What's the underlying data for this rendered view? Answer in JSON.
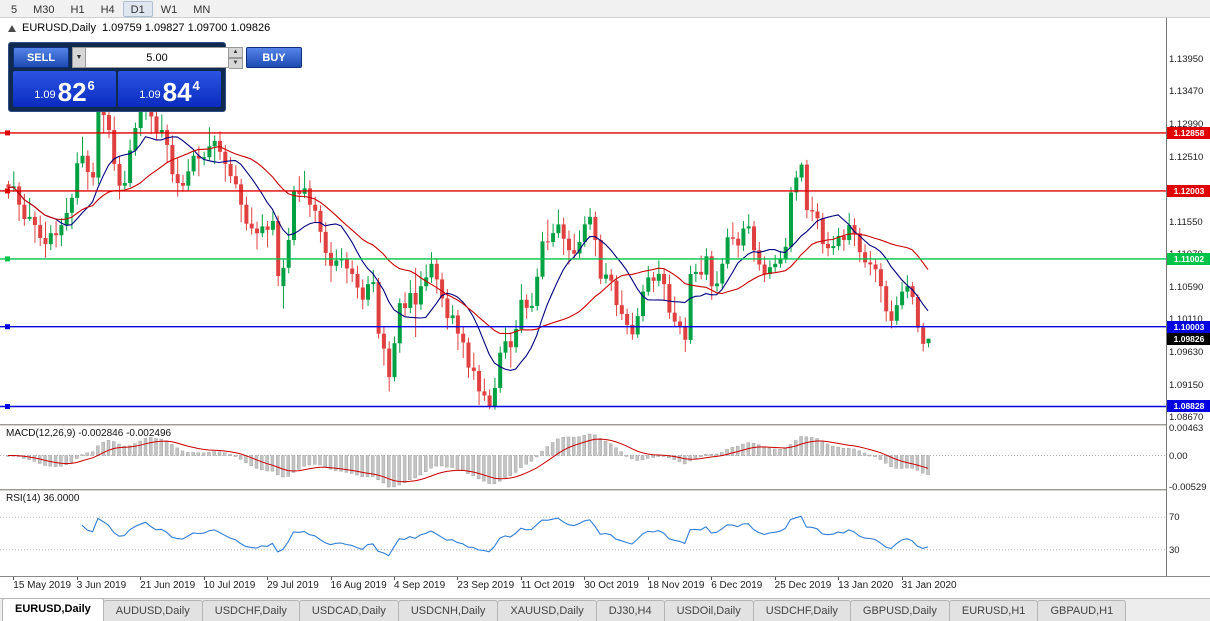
{
  "toolbar": {
    "timeframes": [
      "5",
      "M30",
      "H1",
      "H4",
      "D1",
      "W1",
      "MN"
    ],
    "active_timeframe": "D1"
  },
  "chart": {
    "symbol": "EURUSD,Daily",
    "ohlc_text": "1.09759 1.09827 1.09700 1.09826"
  },
  "trade": {
    "sell_label": "SELL",
    "buy_label": "BUY",
    "volume": "5.00",
    "sell_price": {
      "prefix": "1.09",
      "main": "82",
      "sup": "6"
    },
    "buy_price": {
      "prefix": "1.09",
      "main": "84",
      "sup": "4"
    }
  },
  "price_axis": [
    "1.13950",
    "1.13470",
    "1.12990",
    "1.12510",
    "1.12030",
    "1.11550",
    "1.11070",
    "1.10590",
    "1.10110",
    "1.09630",
    "1.09150",
    "1.08670"
  ],
  "levels": [
    {
      "label": "1.12858",
      "price": 1.12858,
      "color": "#e00000"
    },
    {
      "label": "1.12003",
      "price": 1.12003,
      "color": "#e00000"
    },
    {
      "label": "1.11002",
      "price": 1.11002,
      "color": "#00c44a"
    },
    {
      "label": "1.10003",
      "price": 1.10003,
      "color": "#0000e0"
    },
    {
      "label": "1.08828",
      "price": 1.08828,
      "color": "#0000e0"
    }
  ],
  "current_price": {
    "label": "1.09826",
    "price": 1.09826,
    "color": "#000000"
  },
  "macd": {
    "label": "MACD(12,26,9) -0.002846 -0.002496",
    "axis_top": "0.00463",
    "axis_zero": "0.00",
    "axis_bottom": "-0.00529"
  },
  "rsi": {
    "label": "RSI(14) 36.0000",
    "level_top": "70",
    "level_bottom": "30"
  },
  "tabs": [
    {
      "label": "EURUSD,Daily",
      "active": true
    },
    {
      "label": "AUDUSD,Daily",
      "active": false
    },
    {
      "label": "USDCHF,Daily",
      "active": false
    },
    {
      "label": "USDCAD,Daily",
      "active": false
    },
    {
      "label": "USDCNH,Daily",
      "active": false
    },
    {
      "label": "XAUUSD,Daily",
      "active": false
    },
    {
      "label": "DJ30,H4",
      "active": false
    },
    {
      "label": "USDOil,Daily",
      "active": false
    },
    {
      "label": "USDCHF,Daily",
      "active": false
    },
    {
      "label": "GBPUSD,Daily",
      "active": false
    },
    {
      "label": "EURUSD,H1",
      "active": false
    },
    {
      "label": "GBPAUD,H1",
      "active": false
    }
  ],
  "chart_data": {
    "type": "candlestick",
    "title": "EURUSD,Daily",
    "ylim": [
      1.0857,
      1.1455
    ],
    "x_tick_labels": [
      "15 May 2019",
      "3 Jun 2019",
      "21 Jun 2019",
      "10 Jul 2019",
      "29 Jul 2019",
      "16 Aug 2019",
      "4 Sep 2019",
      "23 Sep 2019",
      "11 Oct 2019",
      "30 Oct 2019",
      "18 Nov 2019",
      "6 Dec 2019",
      "25 Dec 2019",
      "13 Jan 2020",
      "31 Jan 2020"
    ],
    "x_tick_indices": [
      1,
      13,
      25,
      37,
      49,
      61,
      73,
      85,
      97,
      109,
      121,
      133,
      145,
      157,
      169
    ],
    "colors": {
      "bull": "#00a142",
      "bear": "#e04040"
    },
    "ma": [
      {
        "period": 10,
        "color": "#000080"
      },
      {
        "period": 24,
        "color": "#cc0000"
      }
    ],
    "indicators": {
      "macd": {
        "fast": 12,
        "slow": 26,
        "signal": 9
      },
      "rsi": {
        "period": 14
      }
    },
    "ohlc": [
      [
        1.121,
        1.1215,
        1.1189,
        1.1205
      ],
      [
        1.1205,
        1.1229,
        1.1199,
        1.1207
      ],
      [
        1.1207,
        1.1213,
        1.1156,
        1.118
      ],
      [
        1.118,
        1.1196,
        1.1149,
        1.1159
      ],
      [
        1.1159,
        1.119,
        1.1156,
        1.1162
      ],
      [
        1.1162,
        1.117,
        1.1124,
        1.115
      ],
      [
        1.115,
        1.1164,
        1.1119,
        1.1131
      ],
      [
        1.1131,
        1.1155,
        1.1102,
        1.1122
      ],
      [
        1.1122,
        1.115,
        1.1113,
        1.1138
      ],
      [
        1.1138,
        1.1156,
        1.1117,
        1.1135
      ],
      [
        1.1135,
        1.116,
        1.1119,
        1.115
      ],
      [
        1.115,
        1.119,
        1.1142,
        1.1168
      ],
      [
        1.1168,
        1.1196,
        1.1144,
        1.119
      ],
      [
        1.119,
        1.1257,
        1.118,
        1.1241
      ],
      [
        1.1241,
        1.128,
        1.1235,
        1.1252
      ],
      [
        1.1252,
        1.126,
        1.1202,
        1.1228
      ],
      [
        1.1228,
        1.1242,
        1.1208,
        1.122
      ],
      [
        1.122,
        1.134,
        1.121,
        1.133
      ],
      [
        1.133,
        1.1341,
        1.1286,
        1.1312
      ],
      [
        1.1312,
        1.1324,
        1.1278,
        1.129
      ],
      [
        1.129,
        1.131,
        1.123,
        1.124
      ],
      [
        1.124,
        1.1252,
        1.1188,
        1.1208
      ],
      [
        1.1208,
        1.123,
        1.1199,
        1.1212
      ],
      [
        1.1212,
        1.1276,
        1.1206,
        1.126
      ],
      [
        1.126,
        1.1301,
        1.1252,
        1.1293
      ],
      [
        1.1293,
        1.1327,
        1.1281,
        1.1317
      ],
      [
        1.1317,
        1.1349,
        1.1305,
        1.1339
      ],
      [
        1.1339,
        1.1347,
        1.1284,
        1.131
      ],
      [
        1.131,
        1.1322,
        1.1275,
        1.1285
      ],
      [
        1.1285,
        1.1313,
        1.1279,
        1.129
      ],
      [
        1.129,
        1.1298,
        1.1242,
        1.1268
      ],
      [
        1.1268,
        1.1282,
        1.1213,
        1.1225
      ],
      [
        1.1225,
        1.1249,
        1.1192,
        1.1212
      ],
      [
        1.1212,
        1.1224,
        1.1199,
        1.1208
      ],
      [
        1.1208,
        1.1247,
        1.12,
        1.1229
      ],
      [
        1.1229,
        1.126,
        1.1223,
        1.1252
      ],
      [
        1.1252,
        1.1266,
        1.1222,
        1.1248
      ],
      [
        1.1248,
        1.1258,
        1.1238,
        1.125
      ],
      [
        1.125,
        1.1294,
        1.1244,
        1.1266
      ],
      [
        1.1266,
        1.1282,
        1.124,
        1.1274
      ],
      [
        1.1274,
        1.1288,
        1.1246,
        1.1258
      ],
      [
        1.1258,
        1.1268,
        1.1214,
        1.124
      ],
      [
        1.124,
        1.125,
        1.1212,
        1.1222
      ],
      [
        1.1222,
        1.1238,
        1.1204,
        1.121
      ],
      [
        1.121,
        1.1218,
        1.1154,
        1.118
      ],
      [
        1.118,
        1.1192,
        1.1142,
        1.1152
      ],
      [
        1.1152,
        1.1176,
        1.1136,
        1.1145
      ],
      [
        1.1145,
        1.1155,
        1.1114,
        1.1138
      ],
      [
        1.1138,
        1.1166,
        1.1132,
        1.1148
      ],
      [
        1.1148,
        1.1156,
        1.1117,
        1.1143
      ],
      [
        1.1143,
        1.117,
        1.1135,
        1.1156
      ],
      [
        1.1156,
        1.1164,
        1.106,
        1.1075
      ],
      [
        1.106,
        1.1099,
        1.1027,
        1.1087
      ],
      [
        1.1087,
        1.1146,
        1.1079,
        1.1128
      ],
      [
        1.1128,
        1.1208,
        1.112,
        1.12
      ],
      [
        1.12,
        1.1222,
        1.1184,
        1.1196
      ],
      [
        1.1196,
        1.123,
        1.119,
        1.1204
      ],
      [
        1.1204,
        1.1216,
        1.1162,
        1.118
      ],
      [
        1.118,
        1.1192,
        1.1153,
        1.1171
      ],
      [
        1.1171,
        1.1179,
        1.1124,
        1.114
      ],
      [
        1.114,
        1.1154,
        1.109,
        1.1109
      ],
      [
        1.1109,
        1.1125,
        1.1066,
        1.109
      ],
      [
        1.109,
        1.1114,
        1.1082,
        1.1098
      ],
      [
        1.1098,
        1.1116,
        1.1087,
        1.11
      ],
      [
        1.11,
        1.111,
        1.1064,
        1.1086
      ],
      [
        1.1086,
        1.1098,
        1.1066,
        1.1078
      ],
      [
        1.1078,
        1.109,
        1.1042,
        1.1058
      ],
      [
        1.1058,
        1.107,
        1.1026,
        1.104
      ],
      [
        1.104,
        1.1075,
        1.1031,
        1.1063
      ],
      [
        1.1063,
        1.1084,
        1.1051,
        1.1066
      ],
      [
        1.1066,
        1.1072,
        1.0983,
        1.099
      ],
      [
        1.099,
        1.1,
        1.0943,
        1.0968
      ],
      [
        1.0968,
        1.0979,
        1.0905,
        1.0926
      ],
      [
        1.0926,
        1.0986,
        1.092,
        1.0976
      ],
      [
        1.0976,
        1.1042,
        1.0962,
        1.1035
      ],
      [
        1.1035,
        1.1051,
        1.1014,
        1.1028
      ],
      [
        1.1028,
        1.1069,
        1.102,
        1.105
      ],
      [
        1.105,
        1.1087,
        1.0985,
        1.1033
      ],
      [
        1.1033,
        1.1082,
        1.1025,
        1.106
      ],
      [
        1.106,
        1.1092,
        1.1053,
        1.1073
      ],
      [
        1.1073,
        1.111,
        1.1065,
        1.1093
      ],
      [
        1.1093,
        1.1101,
        1.1049,
        1.107
      ],
      [
        1.107,
        1.108,
        1.1029,
        1.1042
      ],
      [
        1.1042,
        1.1056,
        1.0996,
        1.1013
      ],
      [
        1.1013,
        1.1032,
        1.1004,
        1.1017
      ],
      [
        1.1017,
        1.1025,
        1.0966,
        1.099
      ],
      [
        1.099,
        1.1,
        1.0954,
        1.0977
      ],
      [
        1.0977,
        1.0984,
        1.0925,
        1.094
      ],
      [
        1.094,
        1.0962,
        1.0922,
        1.0935
      ],
      [
        1.0935,
        1.0944,
        1.0885,
        1.0905
      ],
      [
        1.0905,
        1.0924,
        1.0891,
        1.0899
      ],
      [
        1.0899,
        1.0908,
        1.0879,
        1.0882
      ],
      [
        1.0882,
        1.0925,
        1.0878,
        1.091
      ],
      [
        1.091,
        1.0971,
        1.0903,
        1.0962
      ],
      [
        1.0962,
        1.0999,
        1.0953,
        1.0979
      ],
      [
        1.0979,
        1.0992,
        1.094,
        1.097
      ],
      [
        1.097,
        1.101,
        1.0962,
        1.0997
      ],
      [
        1.0997,
        1.1063,
        1.0991,
        1.104
      ],
      [
        1.104,
        1.1048,
        1.1012,
        1.1028
      ],
      [
        1.1028,
        1.105,
        1.1022,
        1.1031
      ],
      [
        1.1031,
        1.1086,
        1.1024,
        1.1074
      ],
      [
        1.1074,
        1.114,
        1.107,
        1.1126
      ],
      [
        1.1126,
        1.1158,
        1.1113,
        1.1125
      ],
      [
        1.1125,
        1.1152,
        1.1118,
        1.1138
      ],
      [
        1.1138,
        1.1173,
        1.1131,
        1.1151
      ],
      [
        1.1151,
        1.1161,
        1.1106,
        1.113
      ],
      [
        1.113,
        1.1142,
        1.1092,
        1.1113
      ],
      [
        1.1113,
        1.1137,
        1.11,
        1.1108
      ],
      [
        1.1108,
        1.1142,
        1.1101,
        1.1125
      ],
      [
        1.1125,
        1.1163,
        1.1118,
        1.1151
      ],
      [
        1.1151,
        1.1175,
        1.1143,
        1.1162
      ],
      [
        1.1162,
        1.117,
        1.1104,
        1.1128
      ],
      [
        1.1128,
        1.1136,
        1.1063,
        1.1071
      ],
      [
        1.1071,
        1.1094,
        1.1064,
        1.1077
      ],
      [
        1.1077,
        1.1085,
        1.1053,
        1.1068
      ],
      [
        1.1068,
        1.1076,
        1.1016,
        1.1032
      ],
      [
        1.1032,
        1.1054,
        1.101,
        1.1019
      ],
      [
        1.1019,
        1.1027,
        1.0989,
        1.1003
      ],
      [
        1.1003,
        1.1021,
        1.0981,
        1.0989
      ],
      [
        1.0989,
        1.1028,
        1.0984,
        1.1016
      ],
      [
        1.1016,
        1.1062,
        1.1008,
        1.1052
      ],
      [
        1.1052,
        1.109,
        1.1046,
        1.1073
      ],
      [
        1.1073,
        1.1081,
        1.1051,
        1.1068
      ],
      [
        1.1068,
        1.1098,
        1.106,
        1.1078
      ],
      [
        1.1078,
        1.1086,
        1.1039,
        1.1063
      ],
      [
        1.1063,
        1.1077,
        1.1012,
        1.1021
      ],
      [
        1.1021,
        1.1045,
        1.1001,
        1.1008
      ],
      [
        1.1008,
        1.1016,
        1.0989,
        1.1
      ],
      [
        1.1,
        1.1014,
        1.0963,
        1.0981
      ],
      [
        1.0981,
        1.109,
        1.0975,
        1.1078
      ],
      [
        1.1078,
        1.1093,
        1.1066,
        1.1081
      ],
      [
        1.1081,
        1.1105,
        1.107,
        1.1077
      ],
      [
        1.1077,
        1.1116,
        1.1069,
        1.1104
      ],
      [
        1.1104,
        1.1112,
        1.104,
        1.106
      ],
      [
        1.106,
        1.1082,
        1.1052,
        1.1064
      ],
      [
        1.1064,
        1.1101,
        1.1056,
        1.1093
      ],
      [
        1.1093,
        1.1145,
        1.1086,
        1.1132
      ],
      [
        1.1132,
        1.1154,
        1.1121,
        1.113
      ],
      [
        1.113,
        1.114,
        1.1102,
        1.112
      ],
      [
        1.112,
        1.1156,
        1.1112,
        1.1145
      ],
      [
        1.1145,
        1.1166,
        1.1137,
        1.1148
      ],
      [
        1.1148,
        1.1156,
        1.1096,
        1.1113
      ],
      [
        1.1113,
        1.1125,
        1.1083,
        1.1092
      ],
      [
        1.1092,
        1.1104,
        1.1066,
        1.1078
      ],
      [
        1.1078,
        1.1098,
        1.1071,
        1.1088
      ],
      [
        1.1088,
        1.1106,
        1.1081,
        1.1093
      ],
      [
        1.1093,
        1.1112,
        1.1087,
        1.11
      ],
      [
        1.11,
        1.1131,
        1.1094,
        1.1118
      ],
      [
        1.1118,
        1.1206,
        1.111,
        1.1198
      ],
      [
        1.1198,
        1.123,
        1.1186,
        1.122
      ],
      [
        1.122,
        1.1242,
        1.1214,
        1.1239
      ],
      [
        1.1239,
        1.1246,
        1.116,
        1.1172
      ],
      [
        1.1172,
        1.1192,
        1.1156,
        1.117
      ],
      [
        1.117,
        1.1182,
        1.1144,
        1.116
      ],
      [
        1.116,
        1.1168,
        1.1108,
        1.1122
      ],
      [
        1.1122,
        1.114,
        1.1104,
        1.1116
      ],
      [
        1.1116,
        1.1134,
        1.1106,
        1.1119
      ],
      [
        1.1119,
        1.1146,
        1.1113,
        1.1134
      ],
      [
        1.1134,
        1.1144,
        1.1112,
        1.1128
      ],
      [
        1.1128,
        1.1168,
        1.1121,
        1.115
      ],
      [
        1.115,
        1.116,
        1.1119,
        1.1138
      ],
      [
        1.1138,
        1.1146,
        1.1095,
        1.111
      ],
      [
        1.111,
        1.1122,
        1.1087,
        1.1095
      ],
      [
        1.1095,
        1.1112,
        1.1076,
        1.1092
      ],
      [
        1.1092,
        1.11,
        1.1066,
        1.1085
      ],
      [
        1.1085,
        1.1094,
        1.1036,
        1.106
      ],
      [
        1.106,
        1.1068,
        1.1008,
        1.1023
      ],
      [
        1.1023,
        1.1039,
        1.0998,
        1.1009
      ],
      [
        1.1009,
        1.1045,
        1.1003,
        1.1032
      ],
      [
        1.1032,
        1.1066,
        1.1026,
        1.1052
      ],
      [
        1.1052,
        1.1076,
        1.1042,
        1.106
      ],
      [
        1.106,
        1.1066,
        1.1033,
        1.1044
      ],
      [
        1.1044,
        1.1048,
        1.0992,
        1.0999
      ],
      [
        1.0999,
        1.1006,
        1.0964,
        1.0975
      ],
      [
        1.09759,
        1.09827,
        1.097,
        1.09826
      ]
    ]
  }
}
